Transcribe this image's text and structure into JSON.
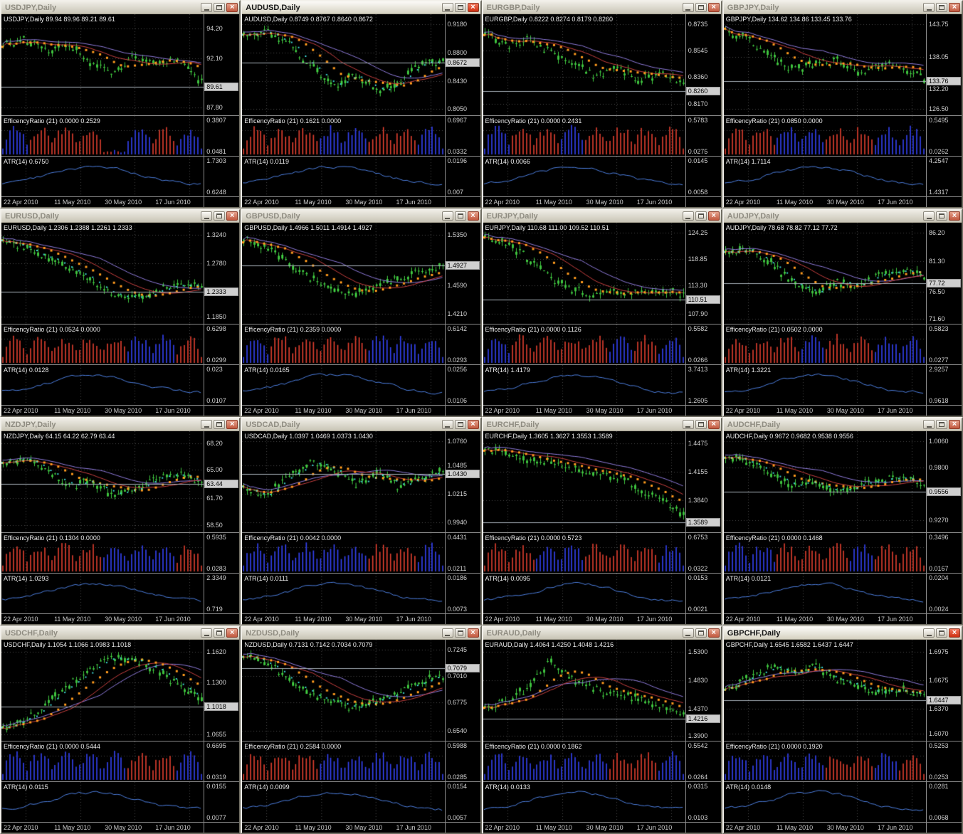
{
  "dates": [
    "22 Apr 2010",
    "11 May 2010",
    "30 May 2010",
    "17 Jun 2010"
  ],
  "colors": {
    "candle": "#3ec23e",
    "ma_orange": "#ff9b1e",
    "ma_red": "#c94040",
    "ma_purple": "#8f7bdc",
    "ma_cyan": "#3fd6d6",
    "er_red": "#b63326",
    "er_blue": "#2a35c4",
    "atr_line": "#4d7fe0",
    "grid": "#4a4a4a",
    "price_line": "#a9b2ba",
    "chart_bg": "#000000",
    "scale_text": "#d2d2d2"
  },
  "windows": [
    {
      "symbol": "USDJPY",
      "title": "USDJPY,Daily",
      "active": false,
      "info": "USDJPY,Daily 89.94 89.96 89.21 89.61",
      "scale": [
        {
          "v": "94.20",
          "pos": 0.14
        },
        {
          "v": "92.10",
          "pos": 0.44
        },
        {
          "v": "89.61",
          "pos": 0.72,
          "boxed": true
        },
        {
          "v": "87.80",
          "pos": 0.92
        }
      ],
      "er_label": "EfficencyRatio (21) 0.0000 0.2529",
      "er_top": "0.3807",
      "er_bottom": "0.0481",
      "atr_label": "ATR(14) 0.6750",
      "atr_top": "1.7303",
      "atr_bottom": "0.6248",
      "trend": [
        0.72,
        0.78,
        0.66,
        0.72,
        0.52,
        0.42,
        0.58,
        0.52,
        0.56,
        0.3
      ],
      "er_pattern": [
        "b",
        "r",
        "r",
        "r",
        ".",
        "b",
        "r",
        "b"
      ],
      "cyan": false
    },
    {
      "symbol": "AUDUSD",
      "title": "AUDUSD,Daily",
      "active": true,
      "info": "AUDUSD,Daily 0.8749 0.8767 0.8640 0.8672",
      "scale": [
        {
          "v": "0.9180",
          "pos": 0.1
        },
        {
          "v": "0.8800",
          "pos": 0.38
        },
        {
          "v": "0.8672",
          "pos": 0.48,
          "boxed": true
        },
        {
          "v": "0.8430",
          "pos": 0.66
        },
        {
          "v": "0.8050",
          "pos": 0.94
        }
      ],
      "er_label": "EfficencyRatio (21) 0.1621 0.0000",
      "er_top": "0.6967",
      "er_bottom": "0.0332",
      "atr_label": "ATR(14) 0.0119",
      "atr_top": "0.0196",
      "atr_bottom": "0.007",
      "trend": [
        0.82,
        0.86,
        0.72,
        0.5,
        0.28,
        0.38,
        0.22,
        0.3,
        0.5,
        0.55
      ],
      "er_pattern": [
        "r",
        "r",
        "r",
        "b",
        "b",
        "r",
        "r",
        "b"
      ],
      "cyan": true
    },
    {
      "symbol": "EURGBP",
      "title": "EURGBP,Daily",
      "active": false,
      "info": "EURGBP,Daily 0.8222 0.8274 0.8179 0.8260",
      "scale": [
        {
          "v": "0.8735",
          "pos": 0.1
        },
        {
          "v": "0.8545",
          "pos": 0.36
        },
        {
          "v": "0.8360",
          "pos": 0.62
        },
        {
          "v": "0.8260",
          "pos": 0.76,
          "boxed": true
        },
        {
          "v": "0.8170",
          "pos": 0.89
        }
      ],
      "er_label": "EfficencyRatio (21) 0.0000 0.2431",
      "er_top": "0.5783",
      "er_bottom": "0.0275",
      "atr_label": "ATR(14) 0.0066",
      "atr_top": "0.0145",
      "atr_bottom": "0.0058",
      "trend": [
        0.82,
        0.72,
        0.78,
        0.62,
        0.52,
        0.38,
        0.48,
        0.32,
        0.42,
        0.28
      ],
      "er_pattern": [
        "b",
        "r",
        "r",
        "b",
        "r",
        "r",
        "r",
        "r"
      ],
      "cyan": false
    },
    {
      "symbol": "GBPJPY",
      "title": "GBPJPY,Daily",
      "active": false,
      "info": "GBPJPY,Daily 134.62 134.86 133.45 133.76",
      "scale": [
        {
          "v": "143.75",
          "pos": 0.1
        },
        {
          "v": "138.05",
          "pos": 0.42
        },
        {
          "v": "133.76",
          "pos": 0.66,
          "boxed": true
        },
        {
          "v": "132.20",
          "pos": 0.74
        },
        {
          "v": "126.50",
          "pos": 0.94
        }
      ],
      "er_label": "EfficencyRatio (21) 0.0850 0.0000",
      "er_top": "0.5495",
      "er_bottom": "0.0262",
      "atr_label": "ATR(14) 1.7114",
      "atr_top": "4.2547",
      "atr_bottom": "1.4317",
      "trend": [
        0.88,
        0.78,
        0.6,
        0.45,
        0.5,
        0.55,
        0.42,
        0.5,
        0.48,
        0.35
      ],
      "er_pattern": [
        "r",
        "r",
        "b",
        "b",
        "r",
        "r",
        "b",
        "b"
      ],
      "cyan": false
    },
    {
      "symbol": "EURUSD",
      "title": "EURUSD,Daily",
      "active": false,
      "info": "EURUSD,Daily 1.2306 1.2388 1.2261 1.2333",
      "scale": [
        {
          "v": "1.3240",
          "pos": 0.12
        },
        {
          "v": "1.2780",
          "pos": 0.4
        },
        {
          "v": "1.2333",
          "pos": 0.68,
          "boxed": true
        },
        {
          "v": "1.1850",
          "pos": 0.93
        }
      ],
      "er_label": "EfficencyRatio (21) 0.0524 0.0000",
      "er_top": "0.6298",
      "er_bottom": "0.0299",
      "atr_label": "ATR(14) 0.0128",
      "atr_top": "0.023",
      "atr_bottom": "0.0107",
      "trend": [
        0.85,
        0.78,
        0.68,
        0.55,
        0.4,
        0.28,
        0.22,
        0.3,
        0.4,
        0.34
      ],
      "er_pattern": [
        "r",
        "r",
        "r",
        "r",
        "r",
        "b",
        "b",
        "r"
      ],
      "cyan": true
    },
    {
      "symbol": "GBPUSD",
      "title": "GBPUSD,Daily",
      "active": false,
      "info": "GBPUSD,Daily 1.4966 1.5011 1.4914 1.4927",
      "scale": [
        {
          "v": "1.5350",
          "pos": 0.12
        },
        {
          "v": "1.4927",
          "pos": 0.42,
          "boxed": true
        },
        {
          "v": "1.4590",
          "pos": 0.62
        },
        {
          "v": "1.4210",
          "pos": 0.9
        }
      ],
      "er_label": "EfficencyRatio (21) 0.2359 0.0000",
      "er_top": "0.6142",
      "er_bottom": "0.0293",
      "atr_label": "ATR(14) 0.0165",
      "atr_top": "0.0256",
      "atr_bottom": "0.0106",
      "trend": [
        0.88,
        0.8,
        0.62,
        0.45,
        0.32,
        0.28,
        0.36,
        0.45,
        0.52,
        0.58
      ],
      "er_pattern": [
        "b",
        "r",
        "r",
        "r",
        "r",
        "b",
        "b",
        "b"
      ],
      "cyan": false
    },
    {
      "symbol": "EURJPY",
      "title": "EURJPY,Daily",
      "active": false,
      "info": "EURJPY,Daily 110.68 111.00 109.52 110.51",
      "scale": [
        {
          "v": "124.25",
          "pos": 0.1
        },
        {
          "v": "118.85",
          "pos": 0.36
        },
        {
          "v": "113.30",
          "pos": 0.62
        },
        {
          "v": "110.51",
          "pos": 0.76,
          "boxed": true
        },
        {
          "v": "107.90",
          "pos": 0.9
        }
      ],
      "er_label": "EfficencyRatio (21) 0.0000 0.1126",
      "er_top": "0.5582",
      "er_bottom": "0.0266",
      "atr_label": "ATR(14) 1.4179",
      "atr_top": "3.7413",
      "atr_bottom": "1.2605",
      "trend": [
        0.9,
        0.82,
        0.65,
        0.45,
        0.32,
        0.26,
        0.3,
        0.28,
        0.32,
        0.28
      ],
      "er_pattern": [
        "b",
        "r",
        "r",
        "r",
        "r",
        "b",
        "r",
        "b"
      ],
      "cyan": false
    },
    {
      "symbol": "AUDJPY",
      "title": "AUDJPY,Daily",
      "active": false,
      "info": "AUDJPY,Daily 78.68 78.82 77.12 77.72",
      "scale": [
        {
          "v": "86.20",
          "pos": 0.1
        },
        {
          "v": "81.30",
          "pos": 0.38
        },
        {
          "v": "77.72",
          "pos": 0.6,
          "boxed": true
        },
        {
          "v": "76.50",
          "pos": 0.68
        },
        {
          "v": "71.60",
          "pos": 0.95
        }
      ],
      "er_label": "EfficencyRatio (21) 0.0502 0.0000",
      "er_top": "0.5823",
      "er_bottom": "0.0277",
      "atr_label": "ATR(14) 1.3221",
      "atr_top": "2.9257",
      "atr_bottom": "0.9618",
      "trend": [
        0.72,
        0.76,
        0.62,
        0.42,
        0.28,
        0.4,
        0.34,
        0.48,
        0.52,
        0.45
      ],
      "er_pattern": [
        "r",
        "r",
        "r",
        "b",
        "r",
        "r",
        "b",
        "b"
      ],
      "cyan": true
    },
    {
      "symbol": "NZDJPY",
      "title": "NZDJPY,Daily",
      "active": false,
      "info": "NZDJPY,Daily 64.15 64.22 62.79 63.44",
      "scale": [
        {
          "v": "68.20",
          "pos": 0.12
        },
        {
          "v": "65.00",
          "pos": 0.38
        },
        {
          "v": "63.44",
          "pos": 0.52,
          "boxed": true
        },
        {
          "v": "61.70",
          "pos": 0.66
        },
        {
          "v": "58.50",
          "pos": 0.93
        }
      ],
      "er_label": "EfficencyRatio (21) 0.1304 0.0000",
      "er_top": "0.5935",
      "er_bottom": "0.0283",
      "atr_label": "ATR(14) 1.0293",
      "atr_top": "2.3349",
      "atr_bottom": "0.719",
      "trend": [
        0.68,
        0.74,
        0.62,
        0.45,
        0.52,
        0.35,
        0.42,
        0.55,
        0.58,
        0.48
      ],
      "er_pattern": [
        "r",
        "r",
        "r",
        "r",
        "b",
        "b",
        "b",
        "r"
      ],
      "cyan": true
    },
    {
      "symbol": "USDCAD",
      "title": "USDCAD,Daily",
      "active": false,
      "info": "USDCAD,Daily 1.0397 1.0469 1.0373 1.0430",
      "scale": [
        {
          "v": "1.0760",
          "pos": 0.1
        },
        {
          "v": "1.0485",
          "pos": 0.34
        },
        {
          "v": "1.0430",
          "pos": 0.42,
          "boxed": true
        },
        {
          "v": "1.0215",
          "pos": 0.62
        },
        {
          "v": "0.9940",
          "pos": 0.9
        }
      ],
      "er_label": "EfficencyRatio (21) 0.0042 0.0000",
      "er_top": "0.4431",
      "er_bottom": "0.0211",
      "atr_label": "ATR(14) 0.0111",
      "atr_top": "0.0186",
      "atr_bottom": "0.0073",
      "trend": [
        0.42,
        0.35,
        0.55,
        0.72,
        0.62,
        0.48,
        0.58,
        0.45,
        0.55,
        0.62
      ],
      "er_pattern": [
        "b",
        "b",
        "b",
        "b",
        "b",
        "r",
        "r",
        "b"
      ],
      "cyan": true
    },
    {
      "symbol": "EURCHF",
      "title": "EURCHF,Daily",
      "active": false,
      "info": "EURCHF,Daily 1.3605 1.3627 1.3553 1.3589",
      "scale": [
        {
          "v": "1.4475",
          "pos": 0.12
        },
        {
          "v": "1.4155",
          "pos": 0.4
        },
        {
          "v": "1.3840",
          "pos": 0.68
        },
        {
          "v": "1.3589",
          "pos": 0.9,
          "boxed": true
        }
      ],
      "er_label": "EfficencyRatio (21) 0.0000 0.5723",
      "er_top": "0.6753",
      "er_bottom": "0.0322",
      "atr_label": "ATR(14) 0.0095",
      "atr_top": "0.0153",
      "atr_bottom": "0.0021",
      "trend": [
        0.85,
        0.8,
        0.75,
        0.7,
        0.65,
        0.6,
        0.55,
        0.42,
        0.3,
        0.15
      ],
      "er_pattern": [
        "r",
        "r",
        "b",
        "b",
        "r",
        "r",
        "r",
        "b"
      ],
      "cyan": false
    },
    {
      "symbol": "AUDCHF",
      "title": "AUDCHF,Daily",
      "active": false,
      "info": "AUDCHF,Daily 0.9672 0.9682 0.9538 0.9556",
      "scale": [
        {
          "v": "1.0060",
          "pos": 0.1
        },
        {
          "v": "0.9800",
          "pos": 0.36
        },
        {
          "v": "0.9556",
          "pos": 0.6,
          "boxed": true
        },
        {
          "v": "0.9270",
          "pos": 0.88
        }
      ],
      "er_label": "EfficencyRatio (21) 0.0000 0.1468",
      "er_top": "0.3496",
      "er_bottom": "0.0167",
      "atr_label": "ATR(14) 0.0121",
      "atr_top": "0.0204",
      "atr_bottom": "0.0024",
      "trend": [
        0.78,
        0.72,
        0.6,
        0.45,
        0.52,
        0.38,
        0.48,
        0.52,
        0.55,
        0.45
      ],
      "er_pattern": [
        "b",
        "b",
        "r",
        "r",
        "r",
        "b",
        "r",
        "r"
      ],
      "cyan": true
    },
    {
      "symbol": "USDCHF",
      "title": "USDCHF,Daily",
      "active": false,
      "info": "USDCHF,Daily 1.1054 1.1066 1.0983 1.1018",
      "scale": [
        {
          "v": "1.1620",
          "pos": 0.12
        },
        {
          "v": "1.1300",
          "pos": 0.42
        },
        {
          "v": "1.1018",
          "pos": 0.66,
          "boxed": true
        },
        {
          "v": "1.0655",
          "pos": 0.94
        }
      ],
      "er_label": "EfficencyRatio (21) 0.0000 0.5444",
      "er_top": "0.6695",
      "er_bottom": "0.0319",
      "atr_label": "ATR(14) 0.0115",
      "atr_top": "0.0155",
      "atr_bottom": "0.0077",
      "trend": [
        0.1,
        0.18,
        0.35,
        0.55,
        0.75,
        0.85,
        0.82,
        0.7,
        0.55,
        0.42
      ],
      "er_pattern": [
        "b",
        "b",
        "b",
        "b",
        "b",
        "r",
        "r",
        "b"
      ],
      "cyan": true
    },
    {
      "symbol": "NZDUSD",
      "title": "NZDUSD,Daily",
      "active": false,
      "info": "NZDUSD,Daily 0.7131 0.7142 0.7034 0.7079",
      "scale": [
        {
          "v": "0.7245",
          "pos": 0.1
        },
        {
          "v": "0.7079",
          "pos": 0.28,
          "boxed": true
        },
        {
          "v": "0.7010",
          "pos": 0.36
        },
        {
          "v": "0.6775",
          "pos": 0.62
        },
        {
          "v": "0.6540",
          "pos": 0.9
        }
      ],
      "er_label": "EfficencyRatio (21) 0.2584 0.0000",
      "er_top": "0.5988",
      "er_bottom": "0.0285",
      "atr_label": "ATR(14) 0.0099",
      "atr_top": "0.0154",
      "atr_bottom": "0.0057",
      "trend": [
        0.85,
        0.8,
        0.62,
        0.45,
        0.35,
        0.3,
        0.38,
        0.48,
        0.6,
        0.66
      ],
      "er_pattern": [
        "r",
        "r",
        "r",
        "b",
        "b",
        "b",
        "b",
        "b"
      ],
      "cyan": true
    },
    {
      "symbol": "EURAUD",
      "title": "EURAUD,Daily",
      "active": false,
      "info": "EURAUD,Daily 1.4064 1.4250 1.4048 1.4216",
      "scale": [
        {
          "v": "1.5300",
          "pos": 0.12
        },
        {
          "v": "1.4830",
          "pos": 0.4
        },
        {
          "v": "1.4370",
          "pos": 0.68
        },
        {
          "v": "1.4216",
          "pos": 0.78,
          "boxed": true
        },
        {
          "v": "1.3900",
          "pos": 0.95
        }
      ],
      "er_label": "EfficencyRatio (21) 0.0000 0.1862",
      "er_top": "0.5542",
      "er_bottom": "0.0264",
      "atr_label": "ATR(14) 0.0133",
      "atr_top": "0.0315",
      "atr_bottom": "0.0103",
      "trend": [
        0.3,
        0.38,
        0.55,
        0.82,
        0.6,
        0.5,
        0.45,
        0.4,
        0.32,
        0.26
      ],
      "er_pattern": [
        "b",
        "b",
        "b",
        "b",
        "b",
        "r",
        "r",
        "b"
      ],
      "cyan": false
    },
    {
      "symbol": "GBPCHF",
      "title": "GBPCHF,Daily",
      "active": true,
      "info": "GBPCHF,Daily 1.6545 1.6582 1.6437 1.6447",
      "scale": [
        {
          "v": "1.6975",
          "pos": 0.12
        },
        {
          "v": "1.6675",
          "pos": 0.4
        },
        {
          "v": "1.6447",
          "pos": 0.6,
          "boxed": true
        },
        {
          "v": "1.6370",
          "pos": 0.68
        },
        {
          "v": "1.6070",
          "pos": 0.93
        }
      ],
      "er_label": "EfficencyRatio (21) 0.0000 0.1920",
      "er_top": "0.5253",
      "er_bottom": "0.0253",
      "atr_label": "ATR(14) 0.0148",
      "atr_top": "0.0281",
      "atr_bottom": "0.0068",
      "trend": [
        0.5,
        0.62,
        0.75,
        0.68,
        0.78,
        0.62,
        0.55,
        0.48,
        0.52,
        0.44
      ],
      "er_pattern": [
        "b",
        "b",
        "b",
        "b",
        "r",
        "r",
        "b",
        "r"
      ],
      "cyan": true
    }
  ]
}
